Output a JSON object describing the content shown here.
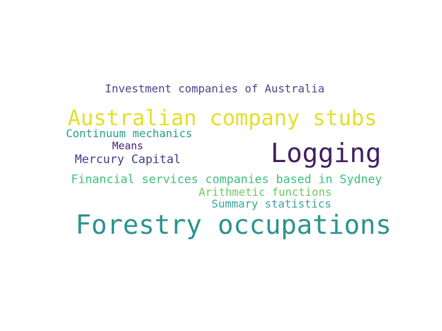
{
  "wordcloud": {
    "words": [
      {
        "text": "Investment companies of Australia",
        "color": "#46468a"
      },
      {
        "text": "Australian company stubs",
        "color": "#e3df2a"
      },
      {
        "text": "Continuum mechanics",
        "color": "#2a9d8a"
      },
      {
        "text": "Means",
        "color": "#4a1a6a"
      },
      {
        "text": "Logging",
        "color": "#431e5e"
      },
      {
        "text": "Mercury Capital",
        "color": "#3f3d86"
      },
      {
        "text": "Financial services companies based in Sydney",
        "color": "#3bbf7a"
      },
      {
        "text": "Arithmetic functions",
        "color": "#6cca5e"
      },
      {
        "text": "Summary statistics",
        "color": "#3aa3a0"
      },
      {
        "text": "Forestry occupations",
        "color": "#2a9390"
      }
    ]
  }
}
